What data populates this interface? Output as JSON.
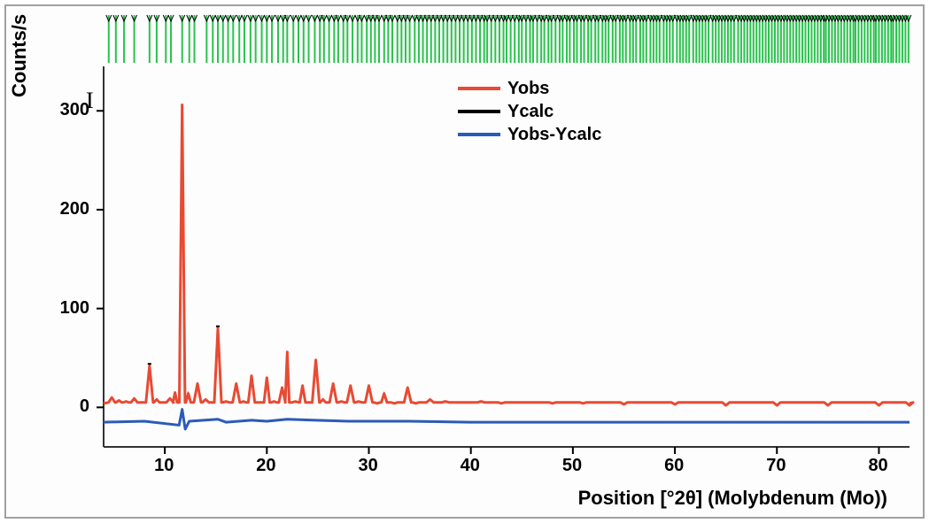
{
  "chart": {
    "type": "line",
    "background_color": "#fcfdfc",
    "border_color": "#a0a0a0",
    "plot_border_color": "#333333",
    "x_axis": {
      "label": "Position [°2θ] (Molybdenum (Mo))",
      "min": 4,
      "max": 83,
      "ticks": [
        10,
        20,
        30,
        40,
        50,
        60,
        70,
        80
      ],
      "label_fontsize": 22,
      "tick_fontsize": 20
    },
    "y_axis": {
      "label": "Counts/s",
      "min": -40,
      "max": 345,
      "ticks": [
        0,
        100,
        200,
        300
      ],
      "label_fontsize": 22,
      "tick_fontsize": 20
    },
    "legend": {
      "items": [
        {
          "label": "Yobs",
          "color": "#e84a33"
        },
        {
          "label": "Ycalc",
          "color": "#000000"
        },
        {
          "label": "Yobs-Ycalc",
          "color": "#2b5bb8"
        }
      ]
    },
    "tick_markers": {
      "color": "#2bc24e",
      "stroke_width": 2,
      "marker_color": "#000000",
      "positions": [
        4.5,
        5.2,
        6.0,
        7.0,
        8.5,
        9.2,
        10.1,
        10.6,
        11.7,
        12.4,
        12.9,
        14.1,
        14.7,
        15.2,
        15.7,
        16.2,
        16.7,
        17.3,
        17.8,
        18.4,
        18.9,
        19.5,
        20.0,
        20.5,
        21.1,
        21.6,
        22.0,
        22.6,
        23.1,
        23.6,
        24.1,
        24.7,
        25.2,
        25.6,
        26.1,
        26.6,
        27.0,
        27.5,
        27.9,
        28.4,
        28.9,
        29.3,
        29.8,
        30.2,
        30.6,
        31.0,
        31.5,
        31.9,
        32.3,
        32.8,
        33.2,
        33.6,
        34.0,
        34.5,
        34.9,
        35.3,
        35.7,
        36.1,
        36.5,
        36.9,
        37.3,
        37.7,
        38.1,
        38.5,
        38.9,
        39.3,
        39.7,
        40.1,
        40.5,
        40.9,
        41.3,
        41.6,
        42.0,
        42.4,
        42.8,
        43.2,
        43.5,
        43.9,
        44.3,
        44.7,
        45.0,
        45.4,
        45.8,
        46.1,
        46.5,
        46.9,
        47.2,
        47.6,
        47.9,
        48.3,
        48.7,
        49.0,
        49.4,
        49.7,
        50.1,
        50.4,
        50.8,
        51.1,
        51.5,
        51.8,
        52.2,
        52.5,
        52.9,
        53.2,
        53.5,
        53.9,
        54.2,
        54.6,
        54.9,
        55.2,
        55.6,
        55.9,
        56.2,
        56.6,
        56.9,
        57.2,
        57.6,
        57.9,
        58.2,
        58.5,
        58.9,
        59.2,
        59.5,
        59.8,
        60.2,
        60.5,
        60.8,
        61.1,
        61.4,
        61.8,
        62.1,
        62.4,
        62.7,
        63.0,
        63.3,
        63.7,
        64.0,
        64.3,
        64.6,
        64.9,
        65.2,
        65.5,
        65.8,
        66.2,
        66.5,
        66.8,
        67.1,
        67.4,
        67.7,
        68.0,
        68.3,
        68.6,
        68.9,
        69.2,
        69.5,
        69.8,
        70.1,
        70.4,
        70.7,
        71.0,
        71.3,
        71.6,
        71.9,
        72.2,
        72.5,
        72.8,
        73.1,
        73.4,
        73.7,
        74.0,
        74.3,
        74.6,
        74.8,
        75.1,
        75.4,
        75.7,
        76.0,
        76.3,
        76.6,
        76.9,
        77.2,
        77.5,
        77.7,
        78.0,
        78.3,
        78.6,
        78.9,
        79.2,
        79.5,
        79.7,
        80.0,
        80.3,
        80.6,
        80.9,
        81.2,
        81.4,
        81.7,
        82.0,
        82.3,
        82.6,
        82.9
      ]
    },
    "series": {
      "yobs": {
        "color": "#e84a33",
        "stroke_width": 3,
        "baseline": 4,
        "peaks": [
          {
            "x": 4.8,
            "y": 10
          },
          {
            "x": 5.5,
            "y": 7
          },
          {
            "x": 6.2,
            "y": 6
          },
          {
            "x": 7.0,
            "y": 9
          },
          {
            "x": 8.5,
            "y": 42
          },
          {
            "x": 9.2,
            "y": 8
          },
          {
            "x": 10.5,
            "y": 9
          },
          {
            "x": 11.0,
            "y": 15
          },
          {
            "x": 11.7,
            "y": 306
          },
          {
            "x": 12.3,
            "y": 14
          },
          {
            "x": 13.2,
            "y": 24
          },
          {
            "x": 14.0,
            "y": 8
          },
          {
            "x": 15.2,
            "y": 80
          },
          {
            "x": 16.0,
            "y": 6
          },
          {
            "x": 17.0,
            "y": 24
          },
          {
            "x": 17.7,
            "y": 6
          },
          {
            "x": 18.5,
            "y": 32
          },
          {
            "x": 19.3,
            "y": 5
          },
          {
            "x": 20.0,
            "y": 30
          },
          {
            "x": 20.7,
            "y": 6
          },
          {
            "x": 21.5,
            "y": 20
          },
          {
            "x": 22.0,
            "y": 56
          },
          {
            "x": 22.8,
            "y": 6
          },
          {
            "x": 23.5,
            "y": 22
          },
          {
            "x": 24.8,
            "y": 48
          },
          {
            "x": 25.5,
            "y": 8
          },
          {
            "x": 26.5,
            "y": 24
          },
          {
            "x": 27.3,
            "y": 6
          },
          {
            "x": 28.2,
            "y": 22
          },
          {
            "x": 29.0,
            "y": 6
          },
          {
            "x": 30.0,
            "y": 22
          },
          {
            "x": 30.8,
            "y": 4
          },
          {
            "x": 31.5,
            "y": 14
          },
          {
            "x": 32.5,
            "y": 4
          },
          {
            "x": 33.8,
            "y": 20
          },
          {
            "x": 34.6,
            "y": 4
          },
          {
            "x": 36.0,
            "y": 8
          },
          {
            "x": 37.5,
            "y": 6
          },
          {
            "x": 39.0,
            "y": 5
          },
          {
            "x": 41.0,
            "y": 6
          },
          {
            "x": 43.0,
            "y": 4
          },
          {
            "x": 45.0,
            "y": 5
          },
          {
            "x": 48.0,
            "y": 4
          },
          {
            "x": 51.0,
            "y": 4
          },
          {
            "x": 55.0,
            "y": 3
          },
          {
            "x": 60.0,
            "y": 3
          },
          {
            "x": 65.0,
            "y": 2
          },
          {
            "x": 70.0,
            "y": 2
          },
          {
            "x": 75.0,
            "y": 2
          },
          {
            "x": 80.0,
            "y": 2
          },
          {
            "x": 83.0,
            "y": 2
          }
        ]
      },
      "ycalc": {
        "color": "#000000",
        "stroke_width": 1.5
      },
      "ydiff": {
        "color": "#2b5bb8",
        "stroke_width": 3,
        "baseline": -15,
        "points": [
          {
            "x": 4,
            "y": -15
          },
          {
            "x": 8,
            "y": -14
          },
          {
            "x": 11.4,
            "y": -18
          },
          {
            "x": 11.7,
            "y": -2
          },
          {
            "x": 12.0,
            "y": -22
          },
          {
            "x": 12.4,
            "y": -14
          },
          {
            "x": 15.2,
            "y": -12
          },
          {
            "x": 16,
            "y": -15
          },
          {
            "x": 18.5,
            "y": -13
          },
          {
            "x": 20,
            "y": -14
          },
          {
            "x": 22,
            "y": -12
          },
          {
            "x": 24.8,
            "y": -13
          },
          {
            "x": 28,
            "y": -14
          },
          {
            "x": 30,
            "y": -14
          },
          {
            "x": 34,
            "y": -14
          },
          {
            "x": 40,
            "y": -15
          },
          {
            "x": 50,
            "y": -15
          },
          {
            "x": 60,
            "y": -15
          },
          {
            "x": 70,
            "y": -15
          },
          {
            "x": 80,
            "y": -15
          },
          {
            "x": 83,
            "y": -15
          }
        ]
      }
    }
  }
}
